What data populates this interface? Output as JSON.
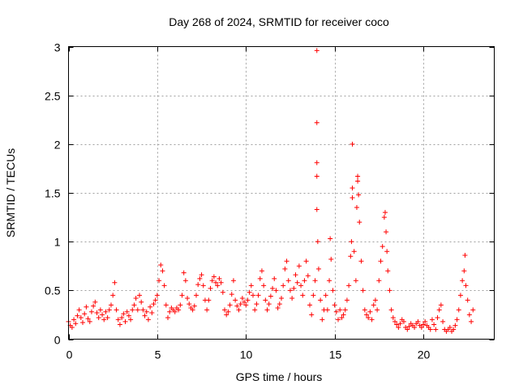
{
  "chart_data": {
    "type": "scatter",
    "title": "Day 268 of 2024, SRMTID for receiver coco",
    "xlabel": "GPS time / hours",
    "ylabel": "SRMTID / TECUs",
    "xlim": [
      0,
      24
    ],
    "ylim": [
      0,
      3
    ],
    "x_ticks": [
      0,
      5,
      10,
      15,
      20
    ],
    "y_ticks": [
      0,
      0.5,
      1,
      1.5,
      2,
      2.5,
      3
    ],
    "x_tick_labels": [
      "0",
      "5",
      "10",
      "15",
      "20"
    ],
    "y_tick_labels": [
      "0",
      "0.5",
      "1",
      "1.5",
      "2",
      "2.5",
      "3"
    ],
    "grid": true,
    "marker": "+",
    "series": [
      {
        "name": "SRMTID",
        "color": "#ff0000",
        "points": [
          [
            0.0,
            0.18
          ],
          [
            0.1,
            0.14
          ],
          [
            0.2,
            0.12
          ],
          [
            0.3,
            0.2
          ],
          [
            0.4,
            0.16
          ],
          [
            0.5,
            0.24
          ],
          [
            0.6,
            0.3
          ],
          [
            0.7,
            0.22
          ],
          [
            0.8,
            0.17
          ],
          [
            0.9,
            0.26
          ],
          [
            1.0,
            0.33
          ],
          [
            1.1,
            0.21
          ],
          [
            1.2,
            0.18
          ],
          [
            1.3,
            0.28
          ],
          [
            1.4,
            0.34
          ],
          [
            1.5,
            0.38
          ],
          [
            1.6,
            0.27
          ],
          [
            1.7,
            0.22
          ],
          [
            1.8,
            0.3
          ],
          [
            1.9,
            0.25
          ],
          [
            2.0,
            0.2
          ],
          [
            2.1,
            0.28
          ],
          [
            2.2,
            0.22
          ],
          [
            2.3,
            0.3
          ],
          [
            2.4,
            0.35
          ],
          [
            2.5,
            0.45
          ],
          [
            2.6,
            0.58
          ],
          [
            2.7,
            0.3
          ],
          [
            2.8,
            0.2
          ],
          [
            2.9,
            0.15
          ],
          [
            3.0,
            0.22
          ],
          [
            3.1,
            0.26
          ],
          [
            3.2,
            0.18
          ],
          [
            3.3,
            0.28
          ],
          [
            3.4,
            0.24
          ],
          [
            3.5,
            0.2
          ],
          [
            3.6,
            0.3
          ],
          [
            3.7,
            0.35
          ],
          [
            3.8,
            0.42
          ],
          [
            3.9,
            0.3
          ],
          [
            4.0,
            0.45
          ],
          [
            4.1,
            0.38
          ],
          [
            4.2,
            0.3
          ],
          [
            4.3,
            0.24
          ],
          [
            4.4,
            0.28
          ],
          [
            4.5,
            0.2
          ],
          [
            4.6,
            0.33
          ],
          [
            4.7,
            0.27
          ],
          [
            4.8,
            0.36
          ],
          [
            4.9,
            0.4
          ],
          [
            5.0,
            0.45
          ],
          [
            5.1,
            0.6
          ],
          [
            5.2,
            0.76
          ],
          [
            5.3,
            0.7
          ],
          [
            5.4,
            0.55
          ],
          [
            5.5,
            0.35
          ],
          [
            5.6,
            0.22
          ],
          [
            5.7,
            0.28
          ],
          [
            5.8,
            0.32
          ],
          [
            5.9,
            0.3
          ],
          [
            6.0,
            0.28
          ],
          [
            6.1,
            0.32
          ],
          [
            6.2,
            0.3
          ],
          [
            6.3,
            0.35
          ],
          [
            6.4,
            0.45
          ],
          [
            6.5,
            0.68
          ],
          [
            6.6,
            0.6
          ],
          [
            6.7,
            0.42
          ],
          [
            6.8,
            0.36
          ],
          [
            6.9,
            0.32
          ],
          [
            7.0,
            0.3
          ],
          [
            7.1,
            0.34
          ],
          [
            7.2,
            0.45
          ],
          [
            7.3,
            0.56
          ],
          [
            7.4,
            0.62
          ],
          [
            7.5,
            0.66
          ],
          [
            7.6,
            0.55
          ],
          [
            7.7,
            0.4
          ],
          [
            7.8,
            0.3
          ],
          [
            7.9,
            0.4
          ],
          [
            8.0,
            0.52
          ],
          [
            8.1,
            0.6
          ],
          [
            8.2,
            0.64
          ],
          [
            8.3,
            0.58
          ],
          [
            8.4,
            0.55
          ],
          [
            8.5,
            0.62
          ],
          [
            8.6,
            0.58
          ],
          [
            8.7,
            0.48
          ],
          [
            8.8,
            0.3
          ],
          [
            8.9,
            0.25
          ],
          [
            9.0,
            0.28
          ],
          [
            9.1,
            0.35
          ],
          [
            9.2,
            0.46
          ],
          [
            9.3,
            0.6
          ],
          [
            9.4,
            0.4
          ],
          [
            9.5,
            0.34
          ],
          [
            9.6,
            0.3
          ],
          [
            9.7,
            0.36
          ],
          [
            9.8,
            0.42
          ],
          [
            9.9,
            0.38
          ],
          [
            10.0,
            0.35
          ],
          [
            10.1,
            0.4
          ],
          [
            10.2,
            0.48
          ],
          [
            10.3,
            0.55
          ],
          [
            10.4,
            0.45
          ],
          [
            10.5,
            0.3
          ],
          [
            10.6,
            0.36
          ],
          [
            10.7,
            0.45
          ],
          [
            10.8,
            0.62
          ],
          [
            10.9,
            0.7
          ],
          [
            11.0,
            0.55
          ],
          [
            11.1,
            0.4
          ],
          [
            11.2,
            0.3
          ],
          [
            11.3,
            0.36
          ],
          [
            11.4,
            0.44
          ],
          [
            11.5,
            0.52
          ],
          [
            11.6,
            0.62
          ],
          [
            11.7,
            0.5
          ],
          [
            11.8,
            0.32
          ],
          [
            11.9,
            0.36
          ],
          [
            12.0,
            0.42
          ],
          [
            12.1,
            0.55
          ],
          [
            12.2,
            0.72
          ],
          [
            12.3,
            0.8
          ],
          [
            12.4,
            0.6
          ],
          [
            12.5,
            0.5
          ],
          [
            12.6,
            0.42
          ],
          [
            12.7,
            0.52
          ],
          [
            12.8,
            0.66
          ],
          [
            12.9,
            0.58
          ],
          [
            13.0,
            0.75
          ],
          [
            13.1,
            0.55
          ],
          [
            13.2,
            0.45
          ],
          [
            13.3,
            0.6
          ],
          [
            13.4,
            0.8
          ],
          [
            13.5,
            0.65
          ],
          [
            13.6,
            0.35
          ],
          [
            13.7,
            0.25
          ],
          [
            13.8,
            0.45
          ],
          [
            13.9,
            0.6
          ],
          [
            14.0,
            2.96
          ],
          [
            14.0,
            2.22
          ],
          [
            14.0,
            1.81
          ],
          [
            14.0,
            1.67
          ],
          [
            14.0,
            1.33
          ],
          [
            14.05,
            1.0
          ],
          [
            14.1,
            0.72
          ],
          [
            14.2,
            0.4
          ],
          [
            14.3,
            0.2
          ],
          [
            14.4,
            0.3
          ],
          [
            14.5,
            0.45
          ],
          [
            14.6,
            0.3
          ],
          [
            14.7,
            0.6
          ],
          [
            14.75,
            1.03
          ],
          [
            14.8,
            0.82
          ],
          [
            14.9,
            0.5
          ],
          [
            15.0,
            0.35
          ],
          [
            15.1,
            0.28
          ],
          [
            15.2,
            0.2
          ],
          [
            15.3,
            0.3
          ],
          [
            15.4,
            0.22
          ],
          [
            15.5,
            0.25
          ],
          [
            15.6,
            0.3
          ],
          [
            15.7,
            0.4
          ],
          [
            15.8,
            0.55
          ],
          [
            15.9,
            0.85
          ],
          [
            15.95,
            1.0
          ],
          [
            16.0,
            2.0
          ],
          [
            16.0,
            1.55
          ],
          [
            16.0,
            1.45
          ],
          [
            16.1,
            0.9
          ],
          [
            16.2,
            0.6
          ],
          [
            16.25,
            1.35
          ],
          [
            16.3,
            1.67
          ],
          [
            16.3,
            1.62
          ],
          [
            16.35,
            1.48
          ],
          [
            16.4,
            1.2
          ],
          [
            16.5,
            0.8
          ],
          [
            16.6,
            0.5
          ],
          [
            16.7,
            0.3
          ],
          [
            16.8,
            0.25
          ],
          [
            16.9,
            0.22
          ],
          [
            17.0,
            0.28
          ],
          [
            17.1,
            0.2
          ],
          [
            17.2,
            0.35
          ],
          [
            17.3,
            0.4
          ],
          [
            17.4,
            0.3
          ],
          [
            17.5,
            0.6
          ],
          [
            17.6,
            0.8
          ],
          [
            17.7,
            0.95
          ],
          [
            17.8,
            1.25
          ],
          [
            17.85,
            1.3
          ],
          [
            17.9,
            1.1
          ],
          [
            17.95,
            0.9
          ],
          [
            18.0,
            0.7
          ],
          [
            18.1,
            0.5
          ],
          [
            18.2,
            0.3
          ],
          [
            18.3,
            0.22
          ],
          [
            18.4,
            0.18
          ],
          [
            18.5,
            0.15
          ],
          [
            18.6,
            0.12
          ],
          [
            18.7,
            0.16
          ],
          [
            18.8,
            0.2
          ],
          [
            18.9,
            0.18
          ],
          [
            19.0,
            0.12
          ],
          [
            19.1,
            0.1
          ],
          [
            19.2,
            0.13
          ],
          [
            19.3,
            0.16
          ],
          [
            19.4,
            0.14
          ],
          [
            19.5,
            0.12
          ],
          [
            19.6,
            0.16
          ],
          [
            19.7,
            0.18
          ],
          [
            19.8,
            0.14
          ],
          [
            19.9,
            0.12
          ],
          [
            20.0,
            0.15
          ],
          [
            20.1,
            0.18
          ],
          [
            20.2,
            0.14
          ],
          [
            20.3,
            0.12
          ],
          [
            20.4,
            0.1
          ],
          [
            20.5,
            0.2
          ],
          [
            20.6,
            0.15
          ],
          [
            20.7,
            0.1
          ],
          [
            20.8,
            0.22
          ],
          [
            20.9,
            0.3
          ],
          [
            21.0,
            0.35
          ],
          [
            21.1,
            0.18
          ],
          [
            21.2,
            0.1
          ],
          [
            21.3,
            0.08
          ],
          [
            21.4,
            0.1
          ],
          [
            21.5,
            0.12
          ],
          [
            21.6,
            0.08
          ],
          [
            21.7,
            0.1
          ],
          [
            21.8,
            0.14
          ],
          [
            21.9,
            0.2
          ],
          [
            22.0,
            0.3
          ],
          [
            22.1,
            0.45
          ],
          [
            22.2,
            0.6
          ],
          [
            22.3,
            0.7
          ],
          [
            22.35,
            0.86
          ],
          [
            22.4,
            0.55
          ],
          [
            22.5,
            0.4
          ],
          [
            22.6,
            0.25
          ],
          [
            22.7,
            0.18
          ],
          [
            22.8,
            0.3
          ]
        ]
      }
    ]
  }
}
